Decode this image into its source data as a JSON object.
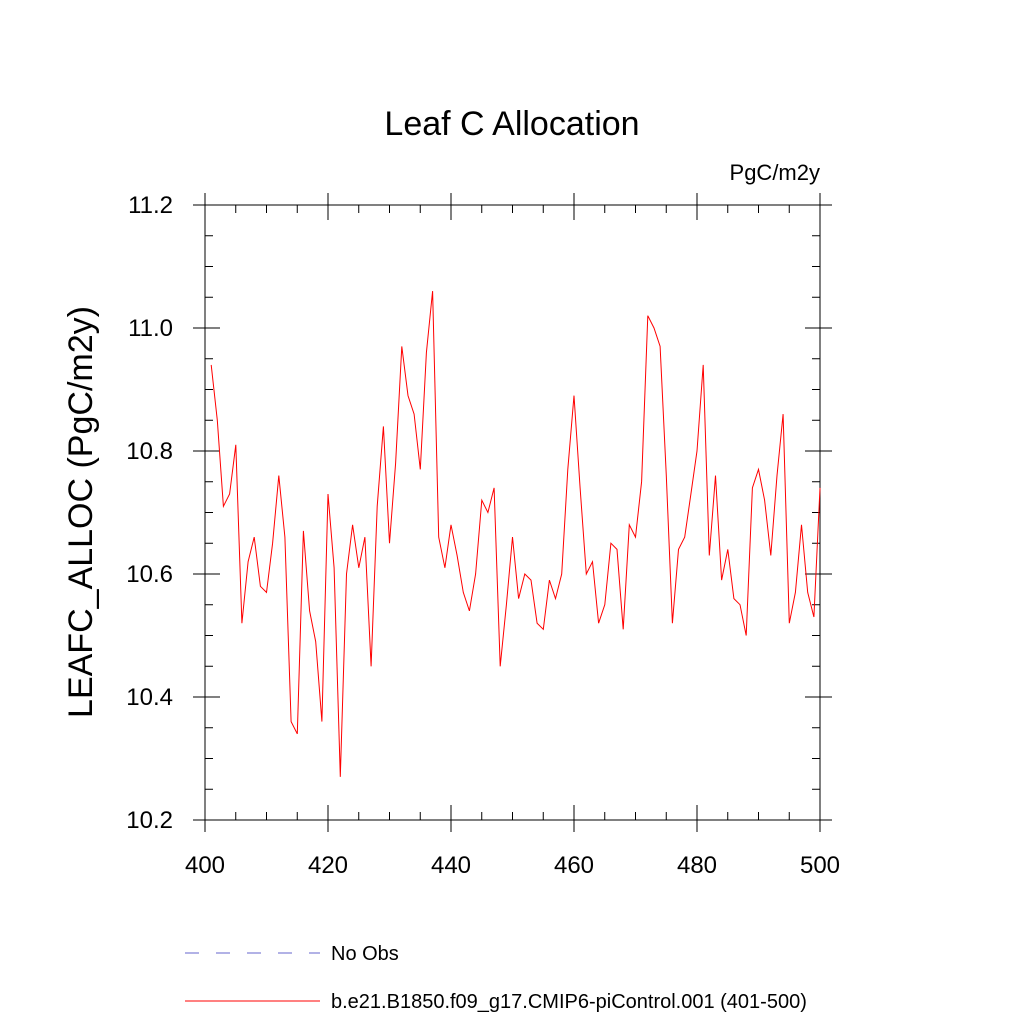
{
  "chart_data": {
    "type": "line",
    "title": "Leaf C Allocation",
    "units": "PgC/m2y",
    "ylabel": "LEAFC_ALLOC  (PgC/m2y)",
    "xlabel": "",
    "xlim": [
      400,
      500
    ],
    "ylim": [
      10.2,
      11.2
    ],
    "x_ticks": [
      400,
      420,
      440,
      460,
      480,
      500
    ],
    "x_tick_labels": [
      "400",
      "420",
      "440",
      "460",
      "480",
      "500"
    ],
    "y_ticks": [
      10.2,
      10.4,
      10.6,
      10.8,
      11.0,
      11.2
    ],
    "y_tick_labels": [
      "10.2",
      "10.4",
      "10.6",
      "10.8",
      "11.0",
      "11.2"
    ],
    "series": [
      {
        "name": "b.e21.B1850.f09_g17.CMIP6-piControl.001 (401-500)",
        "color": "#ff0000",
        "style": "solid",
        "x_start": 401,
        "values": [
          10.94,
          10.85,
          10.71,
          10.73,
          10.81,
          10.52,
          10.62,
          10.66,
          10.58,
          10.57,
          10.65,
          10.76,
          10.66,
          10.36,
          10.34,
          10.67,
          10.54,
          10.49,
          10.36,
          10.73,
          10.61,
          10.27,
          10.6,
          10.68,
          10.61,
          10.66,
          10.45,
          10.71,
          10.84,
          10.65,
          10.78,
          10.97,
          10.89,
          10.86,
          10.77,
          10.96,
          11.06,
          10.66,
          10.61,
          10.68,
          10.63,
          10.57,
          10.54,
          10.6,
          10.72,
          10.7,
          10.74,
          10.45,
          10.55,
          10.66,
          10.56,
          10.6,
          10.59,
          10.52,
          10.51,
          10.59,
          10.56,
          10.6,
          10.77,
          10.89,
          10.74,
          10.6,
          10.62,
          10.52,
          10.55,
          10.65,
          10.64,
          10.51,
          10.68,
          10.66,
          10.75,
          11.02,
          11.0,
          10.97,
          10.76,
          10.52,
          10.64,
          10.66,
          10.73,
          10.8,
          10.94,
          10.63,
          10.76,
          10.59,
          10.64,
          10.56,
          10.55,
          10.5,
          10.74,
          10.77,
          10.72,
          10.63,
          10.76,
          10.86,
          10.52,
          10.57,
          10.68,
          10.57,
          10.53,
          10.74
        ]
      },
      {
        "name": "No Obs",
        "color": "#6666cc",
        "style": "dashed",
        "values": []
      }
    ],
    "legend": "bottom"
  }
}
